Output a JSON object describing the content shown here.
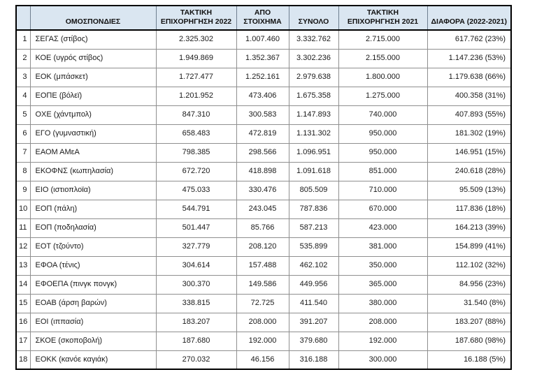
{
  "document": {
    "background": "#ffffff",
    "header_bg": "#dae6f1",
    "grid_color": "#8f8f8f",
    "outer_border_color": "#000000"
  },
  "table": {
    "columns": [
      {
        "key": "num",
        "label": ""
      },
      {
        "key": "federation",
        "label": "ΟΜΟΣΠΟΝΔΙΕΣ"
      },
      {
        "key": "grant_2022",
        "label": "ΤΑΚΤΙΚΗ ΕΠΙΧΟΡΗΓΗΣΗ 2022"
      },
      {
        "key": "betting",
        "label": "ΑΠΟ ΣΤΟΙΧΗΜΑ"
      },
      {
        "key": "total",
        "label": "ΣΥΝΟΛΟ"
      },
      {
        "key": "grant_2021",
        "label": "ΤΑΚΤΙΚΗ ΕΠΙΧΟΡΗΓΗΣΗ 2021"
      },
      {
        "key": "diff",
        "label": "ΔΙΑΦΟΡΑ (2022-2021)"
      }
    ],
    "rows": [
      {
        "num": "1",
        "federation": "ΣΕΓΑΣ (στίβος)",
        "grant_2022": "2.325.302",
        "betting": "1.007.460",
        "total": "3.332.762",
        "grant_2021": "2.715.000",
        "diff": "617.762 (23%)"
      },
      {
        "num": "2",
        "federation": "ΚΟΕ (υγρός στίβος)",
        "grant_2022": "1.949.869",
        "betting": "1.352.367",
        "total": "3.302.236",
        "grant_2021": "2.155.000",
        "diff": "1.147.236 (53%)"
      },
      {
        "num": "3",
        "federation": "ΕΟΚ (μπάσκετ)",
        "grant_2022": "1.727.477",
        "betting": "1.252.161",
        "total": "2.979.638",
        "grant_2021": "1.800.000",
        "diff": "1.179.638 (66%)"
      },
      {
        "num": "4",
        "federation": "ΕΟΠΕ (βόλεϊ)",
        "grant_2022": "1.201.952",
        "betting": "473.406",
        "total": "1.675.358",
        "grant_2021": "1.275.000",
        "diff": "400.358 (31%)"
      },
      {
        "num": "5",
        "federation": "ΟΧΕ (χάντμπολ)",
        "grant_2022": "847.310",
        "betting": "300.583",
        "total": "1.147.893",
        "grant_2021": "740.000",
        "diff": "407.893 (55%)"
      },
      {
        "num": "6",
        "federation": "ΕΓΟ (γυμναστική)",
        "grant_2022": "658.483",
        "betting": "472.819",
        "total": "1.131.302",
        "grant_2021": "950.000",
        "diff": "181.302 (19%)"
      },
      {
        "num": "7",
        "federation": "ΕΑΟΜ ΑΜεΑ",
        "grant_2022": "798.385",
        "betting": "298.566",
        "total": "1.096.951",
        "grant_2021": "950.000",
        "diff": "146.951 (15%)"
      },
      {
        "num": "8",
        "federation": "ΕΚΟΦΝΣ (κωπηλασία)",
        "grant_2022": "672.720",
        "betting": "418.898",
        "total": "1.091.618",
        "grant_2021": "851.000",
        "diff": "240.618 (28%)"
      },
      {
        "num": "9",
        "federation": "ΕΙΟ (ιστιοπλοϊα)",
        "grant_2022": "475.033",
        "betting": "330.476",
        "total": "805.509",
        "grant_2021": "710.000",
        "diff": "95.509 (13%)"
      },
      {
        "num": "10",
        "federation": "ΕΟΠ (πάλη)",
        "grant_2022": "544.791",
        "betting": "243.045",
        "total": "787.836",
        "grant_2021": "670.000",
        "diff": "117.836 (18%)"
      },
      {
        "num": "11",
        "federation": "ΕΟΠ (ποδηλασία)",
        "grant_2022": "501.447",
        "betting": "85.766",
        "total": "587.213",
        "grant_2021": "423.000",
        "diff": "164.213 (39%)"
      },
      {
        "num": "12",
        "federation": "ΕΟΤ (τζούντο)",
        "grant_2022": "327.779",
        "betting": "208.120",
        "total": "535.899",
        "grant_2021": "381.000",
        "diff": "154.899 (41%)"
      },
      {
        "num": "13",
        "federation": "ΕΦΟΑ (τένις)",
        "grant_2022": "304.614",
        "betting": "157.488",
        "total": "462.102",
        "grant_2021": "350.000",
        "diff": "112.102 (32%)"
      },
      {
        "num": "14",
        "federation": "ΕΦΟΕΠΑ (πινγκ πονγκ)",
        "grant_2022": "300.370",
        "betting": "149.586",
        "total": "449.956",
        "grant_2021": "365.000",
        "diff": "84.956 (23%)"
      },
      {
        "num": "15",
        "federation": "ΕΟΑΒ (άρση βαρών)",
        "grant_2022": "338.815",
        "betting": "72.725",
        "total": "411.540",
        "grant_2021": "380.000",
        "diff": "31.540 (8%)"
      },
      {
        "num": "16",
        "federation": "ΕΟΙ (ιππασία)",
        "grant_2022": "183.207",
        "betting": "208.000",
        "total": "391.207",
        "grant_2021": "208.000",
        "diff": "183.207 (88%)"
      },
      {
        "num": "17",
        "federation": "ΣΚΟΕ (σκοποβολή)",
        "grant_2022": "187.680",
        "betting": "192.000",
        "total": "379.680",
        "grant_2021": "192.000",
        "diff": "187.680 (98%)"
      },
      {
        "num": "18",
        "federation": "ΕΟΚΚ (κανόε καγιάκ)",
        "grant_2022": "270.032",
        "betting": "46.156",
        "total": "316.188",
        "grant_2021": "300.000",
        "diff": "16.188 (5%)"
      }
    ]
  }
}
